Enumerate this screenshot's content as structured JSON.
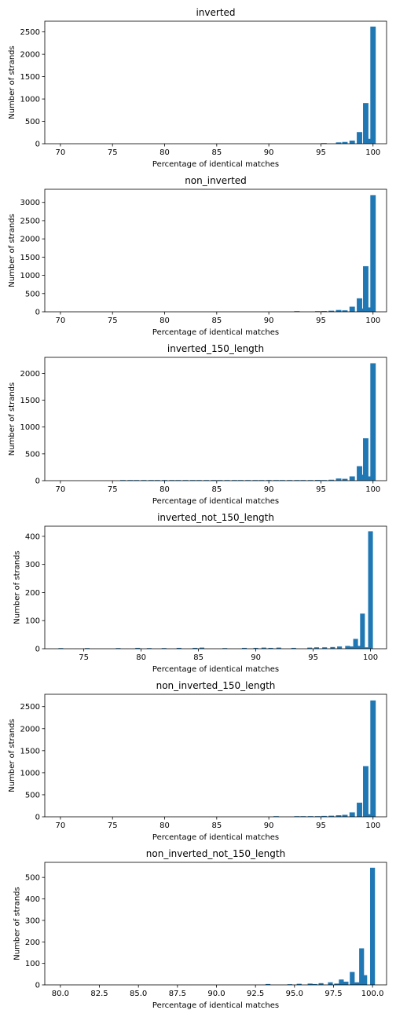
{
  "chart_data": [
    {
      "type": "bar",
      "title": "inverted",
      "xlabel": "Percentage of identical matches",
      "ylabel": "Number of strands",
      "xlim": [
        68.5,
        101.3
      ],
      "ylim": [
        0,
        2740
      ],
      "xticks": [
        70,
        75,
        80,
        85,
        90,
        95,
        100
      ],
      "xtick_labels": [
        "70",
        "75",
        "80",
        "85",
        "90",
        "95",
        "100"
      ],
      "yticks": [
        0,
        500,
        1000,
        1500,
        2000,
        2500
      ],
      "ytick_labels": [
        "0",
        "500",
        "1000",
        "1500",
        "2000",
        "2500"
      ],
      "color": "#1f77b4",
      "bar_width": 0.2,
      "x": [
        95.3,
        96.7,
        97.3,
        98.0,
        98.7,
        99.3,
        99.6,
        100.0
      ],
      "values": [
        10,
        30,
        40,
        70,
        260,
        910,
        110,
        2620
      ]
    },
    {
      "type": "bar",
      "title": "non_inverted",
      "xlabel": "Percentage of identical matches",
      "ylabel": "Number of strands",
      "xlim": [
        68.5,
        101.3
      ],
      "ylim": [
        0,
        3360
      ],
      "xticks": [
        70,
        75,
        80,
        85,
        90,
        95,
        100
      ],
      "xtick_labels": [
        "70",
        "75",
        "80",
        "85",
        "90",
        "95",
        "100"
      ],
      "yticks": [
        0,
        500,
        1000,
        1500,
        2000,
        2500,
        3000
      ],
      "ytick_labels": [
        "0",
        "500",
        "1000",
        "1500",
        "2000",
        "2500",
        "3000"
      ],
      "color": "#1f77b4",
      "bar_width": 0.2,
      "x": [
        92.7,
        94.7,
        95.3,
        96.0,
        96.7,
        97.3,
        98.0,
        98.7,
        99.0,
        99.3,
        99.7,
        100.0
      ],
      "values": [
        10,
        15,
        20,
        30,
        50,
        40,
        140,
        370,
        90,
        1250,
        120,
        3200
      ]
    },
    {
      "type": "bar",
      "title": "inverted_150_length",
      "xlabel": "Percentage of identical matches",
      "ylabel": "Number of strands",
      "xlim": [
        68.5,
        101.3
      ],
      "ylim": [
        0,
        2300
      ],
      "xticks": [
        70,
        75,
        80,
        85,
        90,
        95,
        100
      ],
      "xtick_labels": [
        "70",
        "75",
        "80",
        "85",
        "90",
        "95",
        "100"
      ],
      "yticks": [
        0,
        500,
        1000,
        1500,
        2000
      ],
      "ytick_labels": [
        "0",
        "500",
        "1000",
        "1500",
        "2000"
      ],
      "color": "#1f77b4",
      "bar_width": 0.2,
      "x": [
        76.0,
        76.7,
        77.3,
        78.0,
        78.7,
        79.3,
        80.0,
        80.7,
        81.3,
        82.0,
        82.7,
        83.3,
        84.0,
        84.7,
        85.3,
        86.0,
        86.7,
        87.3,
        88.0,
        88.7,
        89.3,
        90.0,
        90.7,
        91.3,
        92.0,
        92.7,
        93.3,
        94.0,
        94.7,
        95.3,
        96.0,
        96.7,
        97.3,
        98.0,
        98.7,
        99.0,
        99.3,
        99.6,
        100.0
      ],
      "values": [
        8,
        6,
        8,
        7,
        8,
        6,
        10,
        8,
        7,
        8,
        9,
        7,
        10,
        12,
        8,
        9,
        7,
        10,
        8,
        9,
        8,
        12,
        8,
        9,
        10,
        8,
        12,
        10,
        14,
        12,
        18,
        40,
        35,
        80,
        270,
        110,
        790,
        80,
        2190
      ]
    },
    {
      "type": "bar",
      "title": "inverted_not_150_length",
      "xlabel": "Percentage of identical matches",
      "ylabel": "Number of strands",
      "xlim": [
        71.6,
        101.4
      ],
      "ylim": [
        0,
        436
      ],
      "xticks": [
        75,
        80,
        85,
        90,
        95,
        100
      ],
      "xtick_labels": [
        "75",
        "80",
        "85",
        "90",
        "95",
        "100"
      ],
      "yticks": [
        0,
        100,
        200,
        300,
        400
      ],
      "ytick_labels": [
        "0",
        "100",
        "200",
        "300",
        "400"
      ],
      "color": "#1f77b4",
      "bar_width": 0.16,
      "x": [
        73.0,
        75.3,
        78.0,
        79.7,
        80.7,
        82.0,
        83.3,
        84.7,
        85.3,
        87.3,
        89.0,
        90.0,
        90.7,
        91.3,
        92.0,
        93.3,
        94.7,
        95.3,
        96.0,
        96.7,
        97.3,
        98.0,
        98.3,
        98.7,
        99.0,
        99.3,
        99.6,
        100.0
      ],
      "values": [
        2,
        2,
        2,
        3,
        2,
        2,
        3,
        3,
        4,
        2,
        3,
        3,
        4,
        3,
        4,
        3,
        4,
        5,
        5,
        6,
        8,
        10,
        8,
        35,
        10,
        125,
        5,
        418
      ]
    },
    {
      "type": "bar",
      "title": "non_inverted_150_length",
      "xlabel": "Percentage of identical matches",
      "ylabel": "Number of strands",
      "xlim": [
        68.5,
        101.3
      ],
      "ylim": [
        0,
        2780
      ],
      "xticks": [
        70,
        75,
        80,
        85,
        90,
        95,
        100
      ],
      "xtick_labels": [
        "70",
        "75",
        "80",
        "85",
        "90",
        "95",
        "100"
      ],
      "yticks": [
        0,
        500,
        1000,
        1500,
        2000,
        2500
      ],
      "ytick_labels": [
        "0",
        "500",
        "1000",
        "1500",
        "2000",
        "2500"
      ],
      "color": "#1f77b4",
      "bar_width": 0.2,
      "x": [
        90.7,
        92.7,
        93.3,
        94.0,
        94.7,
        95.3,
        96.0,
        96.7,
        97.3,
        98.0,
        98.7,
        99.3,
        99.7,
        100.0
      ],
      "values": [
        10,
        12,
        12,
        15,
        15,
        20,
        25,
        35,
        45,
        100,
        320,
        1150,
        60,
        2640
      ]
    },
    {
      "type": "bar",
      "title": "non_inverted_not_150_length",
      "xlabel": "Percentage of identical matches",
      "ylabel": "Number of strands",
      "xlim": [
        79.0,
        100.9
      ],
      "ylim": [
        0,
        570
      ],
      "xticks": [
        80.0,
        82.5,
        85.0,
        87.5,
        90.0,
        92.5,
        95.0,
        97.5,
        100.0
      ],
      "xtick_labels": [
        "80.0",
        "82.5",
        "85.0",
        "87.5",
        "90.0",
        "92.5",
        "95.0",
        "97.5",
        "100.0"
      ],
      "yticks": [
        0,
        100,
        200,
        300,
        400,
        500
      ],
      "ytick_labels": [
        "0",
        "100",
        "200",
        "300",
        "400",
        "500"
      ],
      "color": "#1f77b4",
      "bar_width": 0.12,
      "x": [
        93.3,
        94.7,
        95.3,
        96.0,
        96.3,
        96.7,
        97.3,
        97.7,
        98.0,
        98.3,
        98.7,
        99.0,
        99.3,
        99.5,
        100.0
      ],
      "values": [
        4,
        3,
        5,
        6,
        4,
        8,
        12,
        6,
        25,
        15,
        60,
        12,
        170,
        45,
        545
      ]
    }
  ]
}
